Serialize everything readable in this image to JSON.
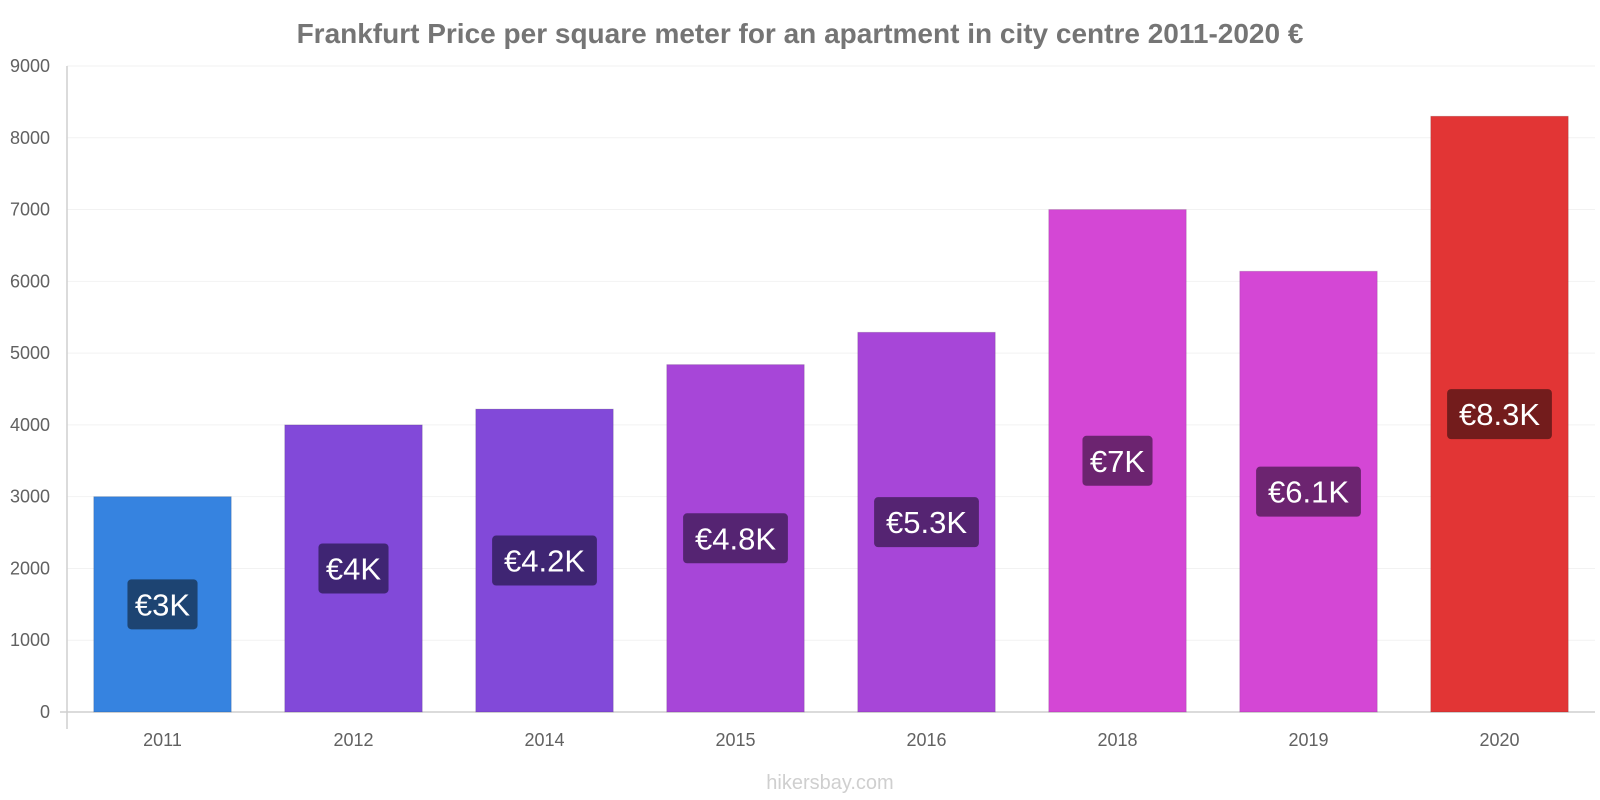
{
  "chart_data": {
    "type": "bar",
    "title": "Frankfurt Price per square meter for an apartment in city centre 2011-2020 €",
    "xlabel": "",
    "ylabel": "",
    "categories": [
      "2011",
      "2012",
      "2014",
      "2015",
      "2016",
      "2018",
      "2019",
      "2020"
    ],
    "values": [
      3000,
      4000,
      4220,
      4840,
      5290,
      7000,
      6140,
      8300
    ],
    "data_labels": [
      "€3K",
      "€4K",
      "€4.2K",
      "€4.8K",
      "€5.3K",
      "€7K",
      "€6.1K",
      "€8.3K"
    ],
    "bar_colors": [
      "#3683e0",
      "#8249d9",
      "#8249d9",
      "#a746d8",
      "#a746d8",
      "#d447d5",
      "#d447d5",
      "#e23535"
    ],
    "label_colors": [
      "#1d4472",
      "#3f2573",
      "#3f2573",
      "#552472",
      "#552472",
      "#6c2470",
      "#6c2470",
      "#731c1c"
    ],
    "ylim": [
      0,
      9000
    ],
    "yticks": [
      "0",
      "1000",
      "2000",
      "3000",
      "4000",
      "5000",
      "6000",
      "7000",
      "8000",
      "9000"
    ],
    "grid": true,
    "legend": "none"
  },
  "watermark": "hikersbay.com"
}
